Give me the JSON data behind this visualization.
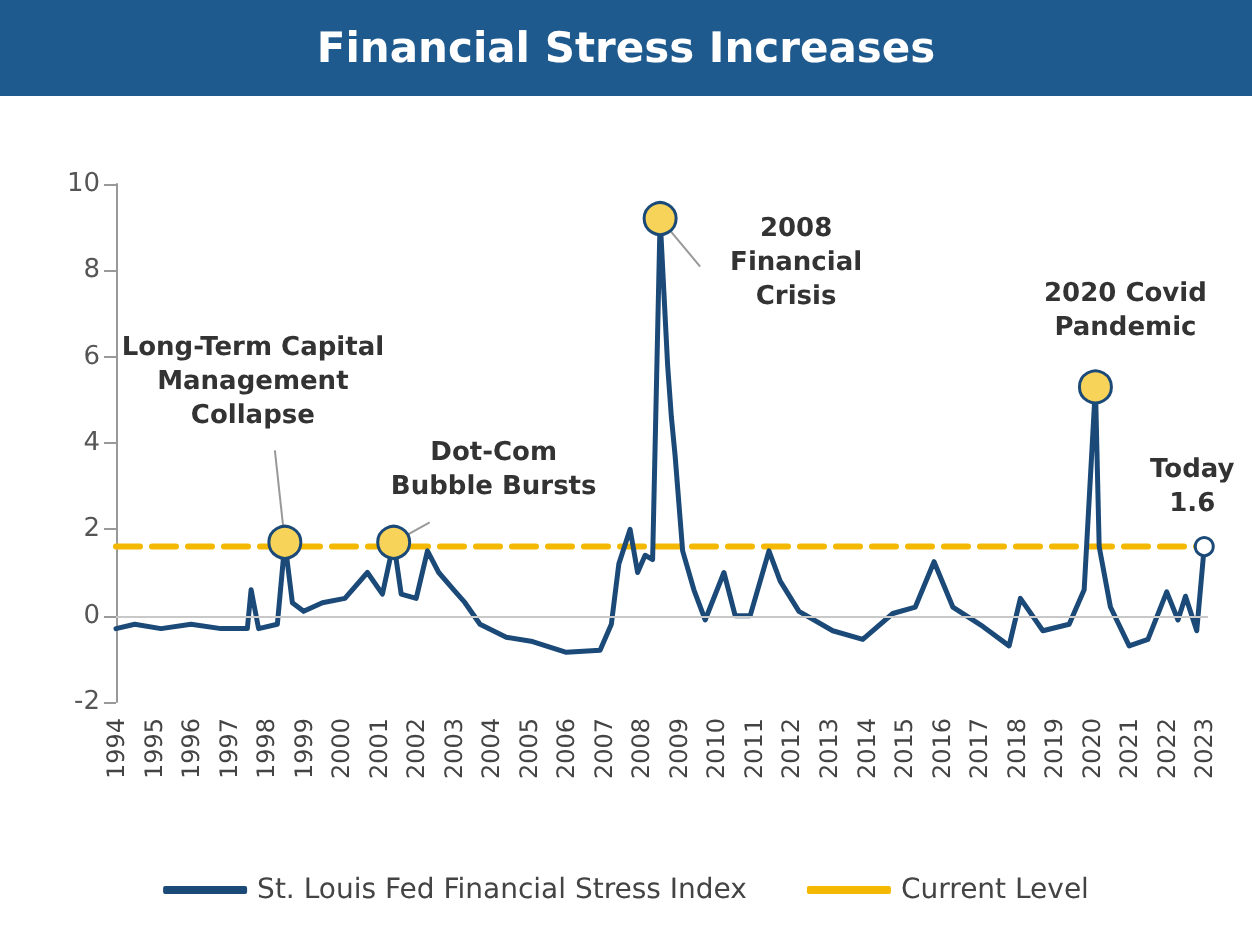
{
  "chart_data": {
    "type": "line",
    "title": "Financial Stress Increases",
    "xlim": [
      1994,
      2023.1
    ],
    "xticks": [
      1994,
      1995,
      1996,
      1997,
      1998,
      1999,
      2000,
      2001,
      2002,
      2003,
      2004,
      2005,
      2006,
      2007,
      2008,
      2009,
      2010,
      2011,
      2012,
      2013,
      2014,
      2015,
      2016,
      2017,
      2018,
      2019,
      2020,
      2021,
      2022,
      2023
    ],
    "ylim": [
      -2,
      10
    ],
    "yticks": [
      -2,
      0,
      2,
      4,
      6,
      8,
      10
    ],
    "grid": false,
    "legend": "bottom",
    "marker": "none",
    "series": [
      {
        "name": "St. Louis Fed Financial Stress Index",
        "color": "#1b4a78",
        "line_style": "solid",
        "x": [
          1994.0,
          1994.5,
          1995.2,
          1996.0,
          1996.8,
          1997.5,
          1997.6,
          1997.8,
          1998.3,
          1998.5,
          1998.7,
          1999.0,
          1999.5,
          2000.1,
          2000.7,
          2001.1,
          2001.4,
          2001.6,
          2002.0,
          2002.3,
          2002.6,
          2003.0,
          2003.3,
          2003.7,
          2004.4,
          2005.1,
          2006.0,
          2006.9,
          2007.2,
          2007.4,
          2007.7,
          2007.9,
          2008.1,
          2008.3,
          2008.5,
          2008.6,
          2008.7,
          2008.8,
          2008.9,
          2009.1,
          2009.4,
          2009.7,
          2010.2,
          2010.5,
          2010.9,
          2011.4,
          2011.7,
          2012.2,
          2013.1,
          2013.9,
          2014.7,
          2015.3,
          2015.8,
          2016.3,
          2017.1,
          2017.8,
          2018.1,
          2018.7,
          2019.4,
          2019.8,
          2020.1,
          2020.2,
          2020.5,
          2021.0,
          2021.5,
          2022.0,
          2022.3,
          2022.5,
          2022.8,
          2023.0
        ],
        "values": [
          -0.3,
          -0.2,
          -0.3,
          -0.2,
          -0.3,
          -0.3,
          0.6,
          -0.3,
          -0.2,
          1.7,
          0.3,
          0.1,
          0.3,
          0.4,
          1.0,
          0.5,
          1.7,
          0.5,
          0.4,
          1.5,
          1.0,
          0.6,
          0.3,
          -0.2,
          -0.5,
          -0.6,
          -0.85,
          -0.8,
          -0.2,
          1.2,
          2.0,
          1.0,
          1.4,
          1.3,
          9.2,
          7.5,
          5.8,
          4.6,
          3.7,
          1.5,
          0.6,
          -0.1,
          1.0,
          0.0,
          0.0,
          1.5,
          0.8,
          0.1,
          -0.35,
          -0.55,
          0.05,
          0.2,
          1.25,
          0.2,
          -0.25,
          -0.7,
          0.4,
          -0.35,
          -0.2,
          0.6,
          5.3,
          1.6,
          0.2,
          -0.7,
          -0.55,
          0.55,
          -0.1,
          0.45,
          -0.35,
          1.6
        ]
      },
      {
        "name": "Current Level",
        "color": "#f5b800",
        "line_style": "dashed",
        "x": [
          1994.0,
          2023.0
        ],
        "values": [
          1.6,
          1.6
        ]
      }
    ],
    "ref_lines": [
      {
        "axis": "y",
        "value": 0,
        "color": "#c8c8c8"
      }
    ],
    "annotations": [
      {
        "text": "Long-Term Capital\nManagement\nCollapse",
        "x": 1998.5,
        "y": 1.7
      },
      {
        "text": "Dot-Com\nBubble Bursts",
        "x": 2001.4,
        "y": 1.7
      },
      {
        "text": "2008\nFinancial\nCrisis",
        "x": 2008.5,
        "y": 9.2
      },
      {
        "text": "2020 Covid\nPandemic",
        "x": 2020.1,
        "y": 5.3
      },
      {
        "text": "Today\n1.6",
        "x": 2023.0,
        "y": 1.6
      }
    ]
  }
}
